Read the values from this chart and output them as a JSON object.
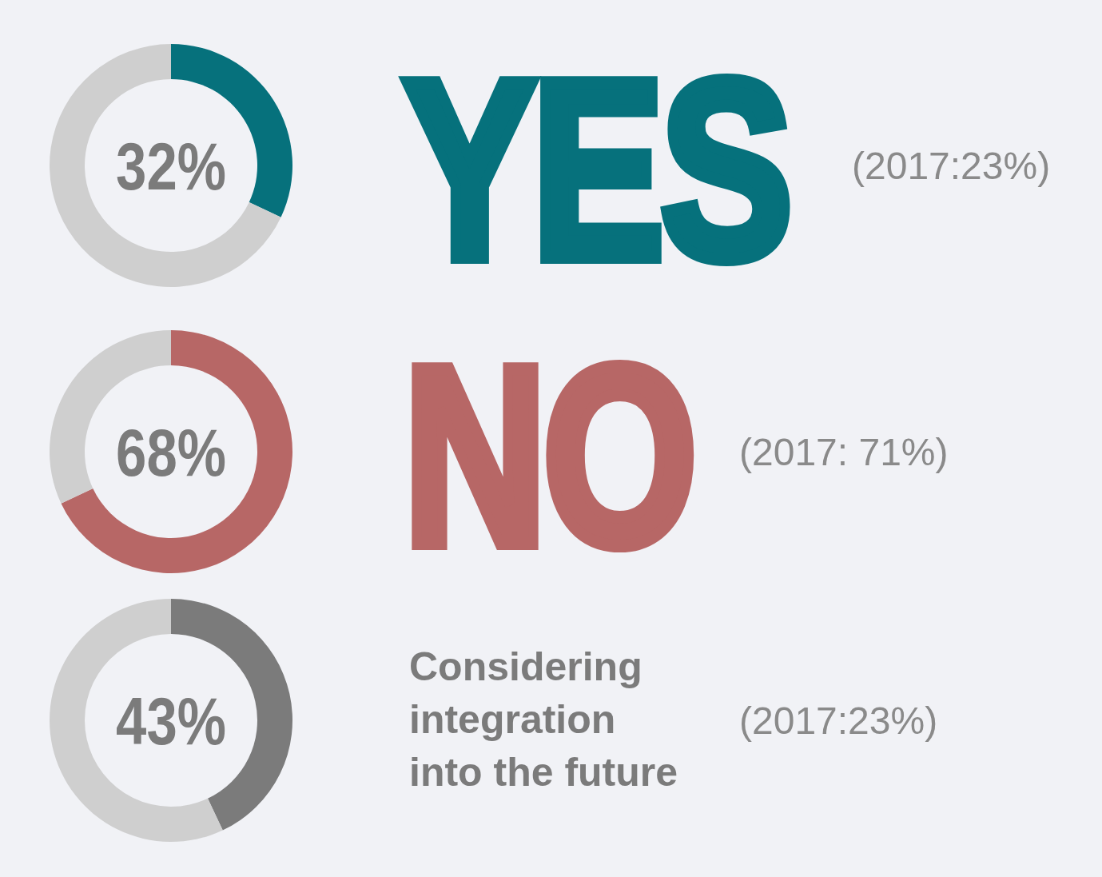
{
  "chart_data": [
    {
      "type": "donut",
      "title": "YES",
      "categories": [
        null,
        null
      ],
      "values": [
        32,
        68
      ],
      "colors": [
        "#06717c",
        "#cfcfcf"
      ],
      "annotations": [
        "32%",
        "(2017:23%)"
      ]
    },
    {
      "type": "donut",
      "title": "NO",
      "categories": [
        null,
        null
      ],
      "values": [
        68,
        32
      ],
      "colors": [
        "#b76766",
        "#cfcfcf"
      ],
      "annotations": [
        "68%",
        "(2017: 71%)"
      ]
    },
    {
      "type": "donut",
      "title": "Considering integration into the future",
      "categories": [
        null,
        null
      ],
      "values": [
        43,
        57
      ],
      "colors": [
        "#7b7b7b",
        "#cfcfcf"
      ],
      "annotations": [
        "43%",
        "(2017:23%)"
      ]
    }
  ]
}
